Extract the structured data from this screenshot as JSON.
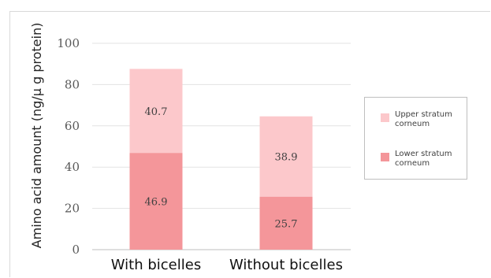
{
  "chart_data": {
    "type": "bar",
    "stacked": true,
    "title": "",
    "xlabel": "",
    "ylabel": "Amino acid amount (ng/μ g protein)",
    "ylim": [
      0,
      100
    ],
    "yticks": [
      "0",
      "20",
      "40",
      "60",
      "80",
      "100"
    ],
    "categories": [
      "With bicelles",
      "Without bicelles"
    ],
    "series": [
      {
        "name": "Lower stratum corneum",
        "values": [
          46.9,
          25.7
        ],
        "labels": [
          "46.9",
          "25.7"
        ],
        "color": "#f4969a"
      },
      {
        "name": "Upper stratum corneum",
        "values": [
          40.7,
          38.9
        ],
        "labels": [
          "40.7",
          "38.9"
        ],
        "color": "#fcc8cb"
      }
    ],
    "grid": true,
    "legend_position": "right"
  },
  "legend": {
    "items": [
      {
        "label": "Upper stratum corneum",
        "color": "#fcc8cb"
      },
      {
        "label": "Lower stratum corneum",
        "color": "#f4969a"
      }
    ]
  }
}
